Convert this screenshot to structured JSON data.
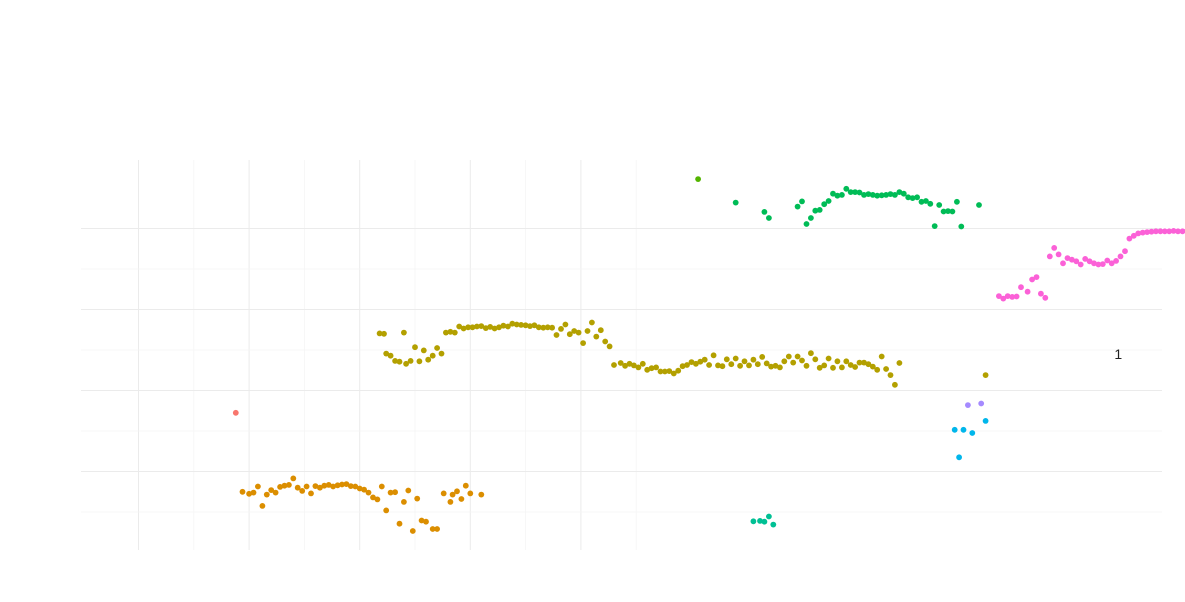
{
  "chart_data": {
    "type": "scatter",
    "title": "",
    "xlabel": "",
    "ylabel": "",
    "xlim": [
      0,
      1000
    ],
    "ylim": [
      0,
      100
    ],
    "grid": true,
    "legend": "none",
    "annotations": [
      {
        "text": "1",
        "x": 443,
        "y": 49
      }
    ],
    "series": [
      {
        "color": "#F8766D",
        "points": [
          [
            44,
            34.5
          ]
        ]
      },
      {
        "color": "#DB8E00",
        "points": [
          [
            47,
            15
          ],
          [
            50,
            14.5
          ],
          [
            52,
            14.8
          ],
          [
            54,
            16.3
          ],
          [
            56,
            11.5
          ],
          [
            58,
            14.3
          ],
          [
            60,
            15.4
          ],
          [
            62,
            14.8
          ],
          [
            64,
            16.2
          ],
          [
            66,
            16.5
          ],
          [
            68,
            16.7
          ],
          [
            70,
            18.3
          ],
          [
            72,
            16
          ],
          [
            74,
            15.2
          ],
          [
            76,
            16.3
          ],
          [
            78,
            14.6
          ],
          [
            80,
            16.4
          ],
          [
            82,
            16
          ],
          [
            84,
            16.5
          ],
          [
            86,
            16.7
          ],
          [
            88,
            16.3
          ],
          [
            90,
            16.6
          ],
          [
            92,
            16.8
          ],
          [
            94,
            16.9
          ],
          [
            96,
            16.4
          ],
          [
            98,
            16.3
          ],
          [
            100,
            15.8
          ],
          [
            102,
            15.5
          ],
          [
            104,
            14.8
          ],
          [
            106,
            13.6
          ],
          [
            108,
            13.1
          ],
          [
            110,
            16.3
          ],
          [
            112,
            10.4
          ],
          [
            114,
            14.8
          ],
          [
            116,
            14.9
          ],
          [
            118,
            7.1
          ],
          [
            120,
            12.5
          ],
          [
            122,
            15.3
          ],
          [
            124,
            5.3
          ],
          [
            126,
            13.3
          ],
          [
            128,
            7.9
          ],
          [
            130,
            7.6
          ],
          [
            133,
            5.8
          ],
          [
            135,
            5.8
          ],
          [
            138,
            14.6
          ],
          [
            141,
            12.5
          ],
          [
            142,
            14.3
          ],
          [
            144,
            15.1
          ],
          [
            146,
            13.2
          ],
          [
            148,
            16.5
          ],
          [
            150,
            14.6
          ],
          [
            155,
            14.3
          ]
        ]
      },
      {
        "color": "#B3A000",
        "points": [
          [
            109,
            54.1
          ],
          [
            111,
            54
          ],
          [
            112,
            49.1
          ],
          [
            114,
            48.6
          ],
          [
            116,
            47.3
          ],
          [
            118,
            47.1
          ],
          [
            120,
            54.3
          ],
          [
            121,
            46.6
          ],
          [
            123,
            47.3
          ],
          [
            125,
            50.7
          ],
          [
            127,
            47.2
          ],
          [
            129,
            49.9
          ],
          [
            131,
            47.6
          ],
          [
            133,
            48.6
          ],
          [
            135,
            50.5
          ],
          [
            137,
            49.1
          ],
          [
            139,
            54.3
          ],
          [
            141,
            54.5
          ],
          [
            143,
            54.3
          ],
          [
            145,
            55.8
          ],
          [
            147,
            55.3
          ],
          [
            149,
            55.6
          ],
          [
            151,
            55.6
          ],
          [
            153,
            55.8
          ],
          [
            155,
            55.9
          ],
          [
            157,
            55.4
          ],
          [
            159,
            55.7
          ],
          [
            161,
            55.3
          ],
          [
            163,
            55.6
          ],
          [
            165,
            56
          ],
          [
            167,
            55.8
          ],
          [
            169,
            56.5
          ],
          [
            171,
            56.3
          ],
          [
            173,
            56.2
          ],
          [
            175,
            56.1
          ],
          [
            177,
            55.9
          ],
          [
            179,
            56.1
          ],
          [
            181,
            55.6
          ],
          [
            183,
            55.5
          ],
          [
            185,
            55.6
          ],
          [
            187,
            55.5
          ],
          [
            189,
            53.7
          ],
          [
            191,
            55.2
          ],
          [
            193,
            56.3
          ],
          [
            195,
            53.9
          ],
          [
            197,
            54.7
          ],
          [
            199,
            54.3
          ],
          [
            201,
            51.7
          ],
          [
            203,
            54.7
          ],
          [
            205,
            56.8
          ],
          [
            207,
            53.3
          ],
          [
            209,
            54.9
          ],
          [
            211,
            52.1
          ],
          [
            213,
            50.9
          ],
          [
            215,
            46.3
          ],
          [
            218,
            46.8
          ],
          [
            220,
            46.1
          ],
          [
            222,
            46.6
          ],
          [
            224,
            46.2
          ],
          [
            226,
            45.7
          ],
          [
            228,
            46.6
          ],
          [
            230,
            45.1
          ],
          [
            232,
            45.5
          ],
          [
            234,
            45.7
          ],
          [
            236,
            44.7
          ],
          [
            238,
            44.7
          ],
          [
            240,
            44.8
          ],
          [
            242,
            44.2
          ],
          [
            244,
            44.9
          ],
          [
            246,
            46
          ],
          [
            248,
            46.3
          ],
          [
            250,
            47
          ],
          [
            252,
            46.6
          ],
          [
            254,
            47.1
          ],
          [
            256,
            47.6
          ],
          [
            258,
            46.3
          ],
          [
            260,
            48.7
          ],
          [
            262,
            46.2
          ],
          [
            264,
            46
          ],
          [
            266,
            47.7
          ],
          [
            268,
            46.5
          ],
          [
            270,
            47.9
          ],
          [
            272,
            46.1
          ],
          [
            274,
            47.2
          ],
          [
            276,
            46.2
          ],
          [
            278,
            47.6
          ],
          [
            280,
            46.5
          ],
          [
            282,
            48.3
          ],
          [
            284,
            46.7
          ],
          [
            286,
            45.9
          ],
          [
            288,
            46.1
          ],
          [
            290,
            45.7
          ],
          [
            292,
            47.2
          ],
          [
            294,
            48.4
          ],
          [
            296,
            46.9
          ],
          [
            298,
            48.4
          ],
          [
            300,
            47.4
          ],
          [
            302,
            46.1
          ],
          [
            304,
            49.2
          ],
          [
            306,
            47.7
          ],
          [
            308,
            45.6
          ],
          [
            310,
            46.2
          ],
          [
            312,
            47.9
          ],
          [
            314,
            45.6
          ],
          [
            316,
            47.2
          ],
          [
            318,
            45.7
          ],
          [
            320,
            47.2
          ],
          [
            322,
            46.3
          ],
          [
            324,
            45.8
          ],
          [
            326,
            46.9
          ],
          [
            328,
            46.9
          ],
          [
            330,
            46.5
          ],
          [
            332,
            45.9
          ],
          [
            334,
            45.1
          ],
          [
            336,
            48.4
          ],
          [
            338,
            45.3
          ],
          [
            340,
            43.8
          ],
          [
            342,
            41.4
          ],
          [
            344,
            46.8
          ],
          [
            383,
            43.8
          ]
        ]
      },
      {
        "color": "#53B400",
        "points": [
          [
            253,
            92.2
          ]
        ]
      },
      {
        "color": "#00BC56",
        "points": [
          [
            270,
            86.4
          ],
          [
            283,
            84.1
          ],
          [
            285,
            82.6
          ],
          [
            298,
            85.4
          ],
          [
            300,
            86.7
          ],
          [
            302,
            81.1
          ],
          [
            304,
            82.6
          ],
          [
            306,
            84.4
          ],
          [
            308,
            84.6
          ],
          [
            310,
            86
          ],
          [
            312,
            86.8
          ],
          [
            314,
            88.6
          ],
          [
            316,
            88.1
          ],
          [
            318,
            88.3
          ],
          [
            320,
            89.8
          ],
          [
            322,
            89
          ],
          [
            324,
            89
          ],
          [
            326,
            88.9
          ],
          [
            328,
            88.3
          ],
          [
            330,
            88.5
          ],
          [
            332,
            88.3
          ],
          [
            334,
            88.1
          ],
          [
            336,
            88.2
          ],
          [
            338,
            88.3
          ],
          [
            340,
            88.5
          ],
          [
            342,
            88.3
          ],
          [
            344,
            89
          ],
          [
            346,
            88.6
          ],
          [
            348,
            87.7
          ],
          [
            350,
            87.5
          ],
          [
            352,
            87.7
          ],
          [
            354,
            86.6
          ],
          [
            356,
            86.8
          ],
          [
            358,
            86.1
          ],
          [
            360,
            80.6
          ],
          [
            362,
            85.8
          ],
          [
            364,
            84.2
          ],
          [
            366,
            84.3
          ],
          [
            368,
            84.2
          ],
          [
            370,
            86.6
          ],
          [
            372,
            80.5
          ],
          [
            380,
            85.8
          ]
        ]
      },
      {
        "color": "#00C094",
        "points": [
          [
            278,
            7.7
          ],
          [
            281,
            7.8
          ],
          [
            283,
            7.6
          ],
          [
            285,
            8.9
          ],
          [
            287,
            6.9
          ]
        ]
      },
      {
        "color": "#00B6EB",
        "points": [
          [
            369,
            30.3
          ],
          [
            371,
            23.5
          ],
          [
            373,
            30.3
          ],
          [
            377,
            29.5
          ],
          [
            383,
            32.5
          ]
        ]
      },
      {
        "color": "#A58AFF",
        "points": [
          [
            375,
            36.4
          ],
          [
            381,
            36.8
          ]
        ]
      },
      {
        "color": "#FB61D7",
        "points": [
          [
            389,
            63.3
          ],
          [
            391,
            62.7
          ],
          [
            393,
            63.3
          ],
          [
            395,
            63.1
          ],
          [
            397,
            63.2
          ],
          [
            399,
            65.5
          ],
          [
            402,
            64.4
          ],
          [
            404,
            67.4
          ],
          [
            406,
            68
          ],
          [
            408,
            63.9
          ],
          [
            410,
            62.9
          ],
          [
            412,
            73.1
          ],
          [
            414,
            75.2
          ],
          [
            416,
            73.6
          ],
          [
            418,
            71.4
          ],
          [
            420,
            72.7
          ],
          [
            422,
            72.3
          ],
          [
            424,
            71.9
          ],
          [
            426,
            71.1
          ],
          [
            428,
            72.5
          ],
          [
            430,
            71.9
          ],
          [
            432,
            71.4
          ],
          [
            434,
            71.1
          ],
          [
            436,
            71.2
          ],
          [
            438,
            72.1
          ],
          [
            440,
            71.4
          ],
          [
            442,
            72
          ],
          [
            444,
            73.1
          ],
          [
            446,
            74.4
          ],
          [
            448,
            77.5
          ],
          [
            450,
            78.2
          ],
          [
            452,
            78.8
          ],
          [
            454,
            79
          ],
          [
            456,
            79.1
          ],
          [
            458,
            79.2
          ],
          [
            460,
            79.3
          ],
          [
            462,
            79.3
          ],
          [
            464,
            79.3
          ],
          [
            466,
            79.3
          ],
          [
            468,
            79.4
          ],
          [
            470,
            79.3
          ],
          [
            472,
            79.3
          ],
          [
            474,
            79.4
          ],
          [
            476,
            79.5
          ],
          [
            478,
            79.6
          ],
          [
            480,
            79.8
          ],
          [
            482,
            79.4
          ],
          [
            484,
            80.2
          ],
          [
            486,
            80.5
          ],
          [
            488,
            80.5
          ],
          [
            490,
            80.7
          ],
          [
            492,
            83.6
          ],
          [
            494,
            78.9
          ],
          [
            496,
            81
          ],
          [
            498,
            75.8
          ],
          [
            500,
            83.7
          ],
          [
            502,
            84.5
          ],
          [
            504,
            92.4
          ],
          [
            506,
            95
          ],
          [
            508,
            80.4
          ],
          [
            510,
            83.8
          ],
          [
            512,
            94.1
          ]
        ]
      }
    ]
  }
}
